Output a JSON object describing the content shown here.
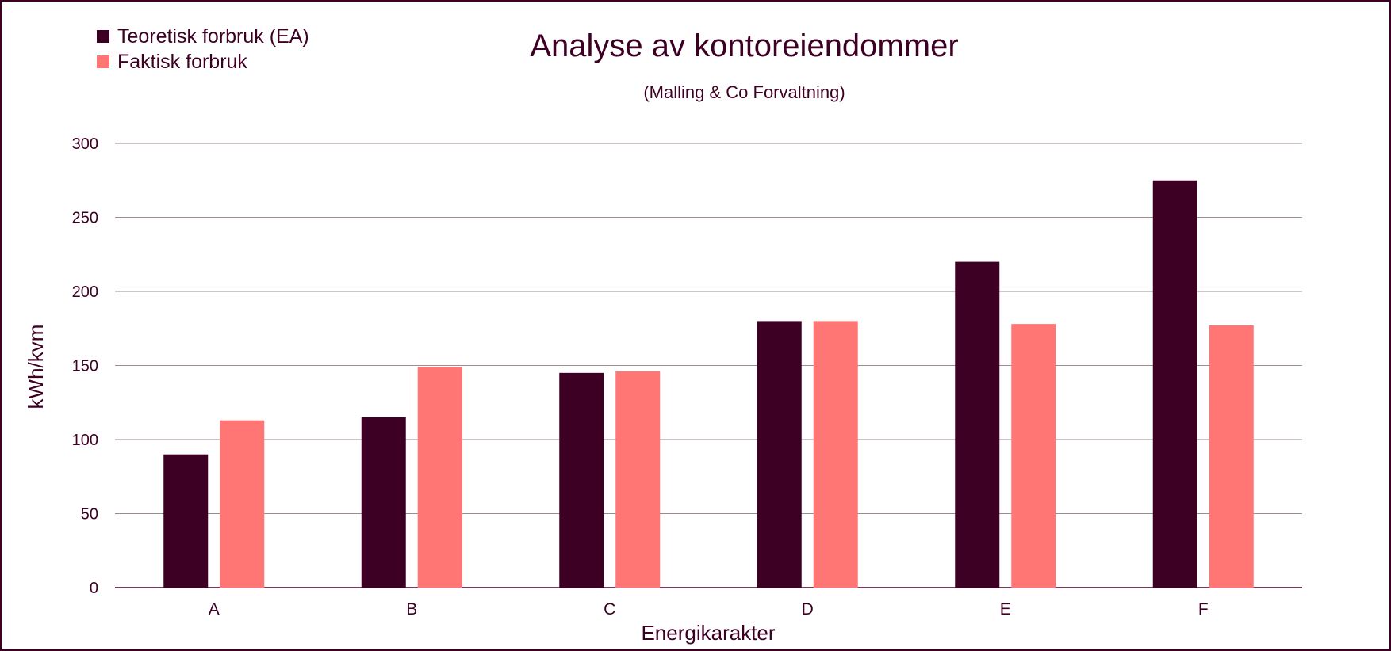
{
  "chart_data": {
    "type": "bar",
    "title": "Analyse av kontoreiendommer",
    "subtitle": "(Malling & Co Forvaltning)",
    "xlabel": "Energikarakter",
    "ylabel": "kWh/kvm",
    "categories": [
      "A",
      "B",
      "C",
      "D",
      "E",
      "F"
    ],
    "yticks": [
      "0",
      "50",
      "100",
      "150",
      "200",
      "250",
      "300"
    ],
    "ylim": [
      0,
      300
    ],
    "grid": true,
    "legend_position": "top-left",
    "series": [
      {
        "name": "Teoretisk forbruk (EA)",
        "color": "#3d0024",
        "values": [
          90,
          115,
          145,
          180,
          220,
          275
        ]
      },
      {
        "name": "Faktisk forbruk",
        "color": "#ff7675",
        "values": [
          113,
          149,
          146,
          180,
          178,
          177
        ]
      }
    ]
  }
}
